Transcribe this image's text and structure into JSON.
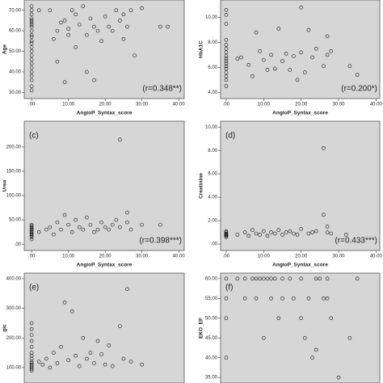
{
  "chart_data": [
    {
      "type": "scatter",
      "annotation": "(r=0.348**)",
      "x_label": "AngioP_Syntax_score",
      "y_label": "Age",
      "x": [
        0,
        0,
        0,
        0,
        0,
        0,
        0,
        0,
        0,
        0,
        0,
        0,
        0,
        0,
        0,
        0,
        0,
        0,
        0,
        0,
        0,
        0,
        0,
        0,
        2,
        5,
        6,
        7,
        7,
        8,
        9,
        9,
        10,
        10,
        11,
        12,
        12,
        13,
        14,
        15,
        15,
        16,
        17,
        17,
        18,
        19,
        20,
        21,
        22,
        23,
        24,
        25,
        25,
        26,
        27,
        28,
        30,
        35,
        37
      ],
      "values": [
        31,
        33,
        36,
        38,
        40,
        42,
        44,
        46,
        48,
        50,
        52,
        54,
        55,
        57,
        58,
        60,
        62,
        63,
        64,
        65,
        66,
        68,
        70,
        72,
        70,
        70,
        56,
        45,
        60,
        64,
        35,
        65,
        61,
        58,
        70,
        68,
        52,
        63,
        72,
        58,
        40,
        66,
        36,
        62,
        60,
        55,
        67,
        62,
        60,
        70,
        65,
        68,
        56,
        62,
        70,
        48,
        71,
        62,
        62
      ],
      "xlim": [
        -2,
        41.5
      ],
      "ylim": [
        27,
        75
      ],
      "xticks": [
        {
          "value": 0,
          "label": ".00"
        },
        {
          "value": 10,
          "label": "10.00"
        },
        {
          "value": 20,
          "label": "20.00"
        },
        {
          "value": 30,
          "label": "30.00"
        },
        {
          "value": 40,
          "label": "40.00"
        }
      ],
      "yticks": [
        {
          "value": 30,
          "label": "30.00"
        },
        {
          "value": 40,
          "label": "40.00"
        },
        {
          "value": 50,
          "label": "50.00"
        },
        {
          "value": 60,
          "label": "60.00"
        },
        {
          "value": 70,
          "label": "70.00"
        }
      ]
    },
    {
      "type": "scatter",
      "annotation": "(r=0.200*)",
      "x_label": "AngioP_Syntax_score",
      "y_label": "HbA1C",
      "x": [
        0,
        0,
        0,
        0,
        0,
        0,
        0,
        0,
        0,
        0,
        0,
        0,
        0,
        0,
        0,
        0,
        0,
        3,
        4,
        6,
        7,
        8,
        9,
        10,
        11,
        12,
        13,
        14,
        15,
        16,
        17,
        18,
        19,
        20,
        20,
        21,
        22,
        23,
        24,
        26,
        27,
        27,
        28,
        33,
        35
      ],
      "values": [
        4.5,
        5.0,
        5.3,
        5.6,
        5.9,
        6.1,
        6.3,
        6.5,
        6.7,
        6.9,
        7.2,
        7.5,
        7.8,
        8.2,
        9.5,
        10.2,
        10.6,
        6.7,
        6.8,
        6.2,
        5.3,
        8.8,
        7.3,
        6.6,
        5.8,
        7.0,
        5.9,
        9.1,
        6.5,
        7.1,
        5.8,
        6.9,
        5.0,
        7.2,
        10.8,
        5.6,
        9.0,
        6.8,
        7.5,
        6.1,
        7.0,
        8.5,
        7.3,
        6.1,
        5.4
      ],
      "xlim": [
        -1.5,
        41
      ],
      "ylim": [
        3.5,
        11.4
      ],
      "xticks": [
        {
          "value": 0,
          "label": ".00"
        },
        {
          "value": 10,
          "label": "10.00"
        },
        {
          "value": 20,
          "label": "20.00"
        },
        {
          "value": 30,
          "label": "30.00"
        },
        {
          "value": 40,
          "label": "40.00"
        }
      ],
      "yticks": [
        {
          "value": 4,
          "label": "4.00"
        },
        {
          "value": 6,
          "label": "6.00"
        },
        {
          "value": 8,
          "label": "8.00"
        },
        {
          "value": 10,
          "label": "10.00"
        }
      ]
    },
    {
      "type": "scatter",
      "panel_label": "(c)",
      "annotation": "(r=0.398***)",
      "x_label": "AngioP_Syntax_score",
      "y_label": "Urea",
      "x": [
        0,
        0,
        0,
        0,
        0,
        0,
        0,
        0,
        0,
        0,
        0,
        0,
        2,
        4,
        5,
        6,
        7,
        8,
        9,
        10,
        11,
        12,
        13,
        14,
        15,
        16,
        17,
        18,
        19,
        20,
        21,
        22,
        23,
        24,
        24,
        26,
        26,
        27,
        30,
        35
      ],
      "values": [
        10,
        15,
        18,
        20,
        22,
        25,
        28,
        30,
        33,
        35,
        38,
        40,
        25,
        30,
        35,
        20,
        45,
        30,
        60,
        40,
        25,
        50,
        35,
        30,
        55,
        40,
        25,
        30,
        45,
        35,
        30,
        40,
        50,
        215,
        35,
        65,
        45,
        30,
        40,
        40
      ],
      "xlim": [
        -2,
        41.5
      ],
      "ylim": [
        -13,
        253
      ],
      "xticks": [
        {
          "value": 0,
          "label": ".00"
        },
        {
          "value": 10,
          "label": "10.00"
        },
        {
          "value": 20,
          "label": "20.00"
        },
        {
          "value": 30,
          "label": "30.00"
        },
        {
          "value": 40,
          "label": "40.00"
        }
      ],
      "yticks": [
        {
          "value": 0,
          "label": ".00"
        },
        {
          "value": 50,
          "label": "50.00"
        },
        {
          "value": 100,
          "label": "100.00"
        },
        {
          "value": 150,
          "label": "150.00"
        },
        {
          "value": 200,
          "label": "200.00"
        }
      ]
    },
    {
      "type": "scatter",
      "panel_label": "(d)",
      "annotation": "(r=0.433***)",
      "x_label": "AngioP_Syntax_score",
      "y_label": "Creatinine",
      "x": [
        0,
        0,
        0,
        0,
        0,
        0,
        0,
        0,
        3,
        5,
        6,
        7,
        8,
        9,
        10,
        11,
        12,
        13,
        14,
        15,
        16,
        17,
        18,
        19,
        20,
        22,
        23,
        24,
        26,
        26,
        27,
        27,
        28,
        32
      ],
      "values": [
        0.6,
        0.7,
        0.75,
        0.8,
        0.85,
        0.9,
        1.0,
        1.1,
        0.8,
        1.0,
        0.7,
        1.2,
        0.9,
        0.8,
        1.1,
        0.7,
        1.0,
        0.9,
        1.2,
        0.8,
        1.0,
        1.1,
        0.9,
        0.8,
        1.3,
        0.9,
        1.0,
        1.1,
        8.2,
        2.5,
        1.5,
        1.0,
        0.9,
        0.8
      ],
      "xlim": [
        -1.5,
        41
      ],
      "ylim": [
        -0.55,
        10.5
      ],
      "xticks": [
        {
          "value": 0,
          "label": ".00"
        },
        {
          "value": 10,
          "label": "10.00"
        },
        {
          "value": 20,
          "label": "20.00"
        },
        {
          "value": 30,
          "label": "30.00"
        },
        {
          "value": 40,
          "label": "40.00"
        }
      ],
      "yticks": [
        {
          "value": 0,
          "label": ".00"
        },
        {
          "value": 2,
          "label": "2.00"
        },
        {
          "value": 4,
          "label": "4.00"
        },
        {
          "value": 6,
          "label": "6.00"
        },
        {
          "value": 8,
          "label": "8.00"
        },
        {
          "value": 10,
          "label": "10.00"
        }
      ]
    },
    {
      "type": "scatter",
      "panel_label": "(e)",
      "y_label": "glc",
      "x": [
        0,
        0,
        0,
        0,
        0,
        0,
        0,
        0,
        0,
        0,
        0,
        0,
        0,
        0,
        0,
        2,
        3,
        4,
        5,
        6,
        7,
        8,
        9,
        10,
        11,
        12,
        13,
        14,
        15,
        16,
        17,
        18,
        19,
        20,
        21,
        22,
        24,
        25,
        26,
        27,
        30
      ],
      "values": [
        90,
        95,
        100,
        105,
        110,
        115,
        120,
        130,
        140,
        150,
        170,
        190,
        210,
        230,
        250,
        120,
        110,
        130,
        100,
        150,
        115,
        170,
        320,
        125,
        290,
        140,
        105,
        200,
        130,
        150,
        115,
        190,
        145,
        110,
        175,
        105,
        240,
        130,
        365,
        120,
        110
      ],
      "xlim": [
        -2,
        41.5
      ],
      "ylim": [
        48,
        419
      ],
      "yticks": [
        {
          "value": 100,
          "label": "100.00"
        },
        {
          "value": 200,
          "label": "200.00"
        },
        {
          "value": 300,
          "label": "300.00"
        },
        {
          "value": 400,
          "label": "400.00"
        }
      ]
    },
    {
      "type": "scatter",
      "panel_label": "(f)",
      "y_label": "EKO_EF",
      "x": [
        0,
        0,
        0,
        0,
        3,
        5,
        7,
        8,
        9,
        10,
        11,
        12,
        13,
        15,
        17,
        20,
        24,
        25,
        35,
        5,
        8,
        12,
        15,
        18,
        22,
        26,
        27,
        28,
        14,
        20,
        21,
        23,
        24,
        10,
        33,
        30,
        27
      ],
      "values": [
        40,
        50,
        55,
        60,
        60,
        60,
        60,
        60,
        60,
        60,
        60,
        60,
        60,
        60,
        60,
        60,
        60,
        60,
        60,
        55,
        55,
        55,
        55,
        55,
        55,
        55,
        55,
        50,
        50,
        50,
        45,
        40,
        42,
        45,
        45,
        35,
        60
      ],
      "xlim": [
        -1.5,
        41
      ],
      "ylim": [
        33.6,
        61.4
      ],
      "yticks": [
        {
          "value": 35,
          "label": "35.00"
        },
        {
          "value": 40,
          "label": "40.00"
        },
        {
          "value": 45,
          "label": "45.00"
        },
        {
          "value": 50,
          "label": "50.00"
        },
        {
          "value": 55,
          "label": "55.00"
        },
        {
          "value": 60,
          "label": "60.00"
        }
      ]
    }
  ]
}
